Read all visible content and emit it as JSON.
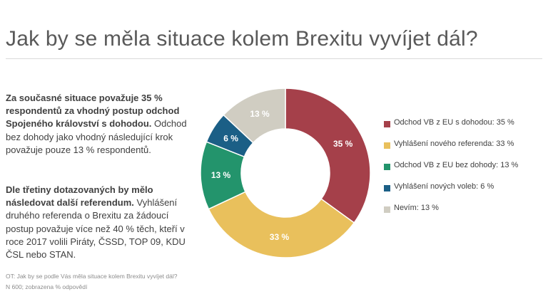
{
  "title": "Jak by se měla situace kolem Brexitu vyvíjet dál?",
  "text": {
    "p1_bold": "Za současné situace považuje 35 % respondentů za vhodný postup odchod Spojeného království s dohodou.",
    "p1_normal": "Odchod bez dohody jako vhodný následující krok považuje pouze 13 % respondentů.",
    "p2_bold": "Dle třetiny dotazovaných by mělo následovat další referendum.",
    "p2_normal": "Vyhlášení druhého referenda o Brexitu za žádoucí  postup považuje více než 40 % těch, kteří v roce 2017 volili Piráty, ČSSD, TOP 09, KDU ČSL nebo STAN."
  },
  "footnote": {
    "question": "OT: Jak by se podle Vás měla situace kolem Brexitu vyvíjet dál?",
    "sample": "N 600;  zobrazena % odpovědí"
  },
  "chart_data": {
    "type": "pie",
    "donut": true,
    "categories": [
      "Odchod VB z EU s dohodou",
      "Vyhlášení nového referenda",
      "Odchod VB z EU bez dohody",
      "Vyhlášení nových voleb",
      "Nevím"
    ],
    "values": [
      35,
      33,
      13,
      6,
      13
    ],
    "data_labels": [
      "35 %",
      "33 %",
      "13 %",
      "6 %",
      "13 %"
    ],
    "legend_labels": [
      "Odchod VB z EU s dohodou: 35 %",
      "Vyhlášení nového referenda: 33 %",
      "Odchod VB z EU bez dohody: 13 %",
      "Vyhlášení nových voleb: 6 %",
      "Nevím: 13 %"
    ],
    "colors": [
      "#a5404a",
      "#e9c05c",
      "#23946c",
      "#1b5f86",
      "#d0cdc2"
    ],
    "label_colors": [
      "#ffffff",
      "#ffffff",
      "#ffffff",
      "#ffffff",
      "#ffffff"
    ],
    "legend_position": "right"
  }
}
